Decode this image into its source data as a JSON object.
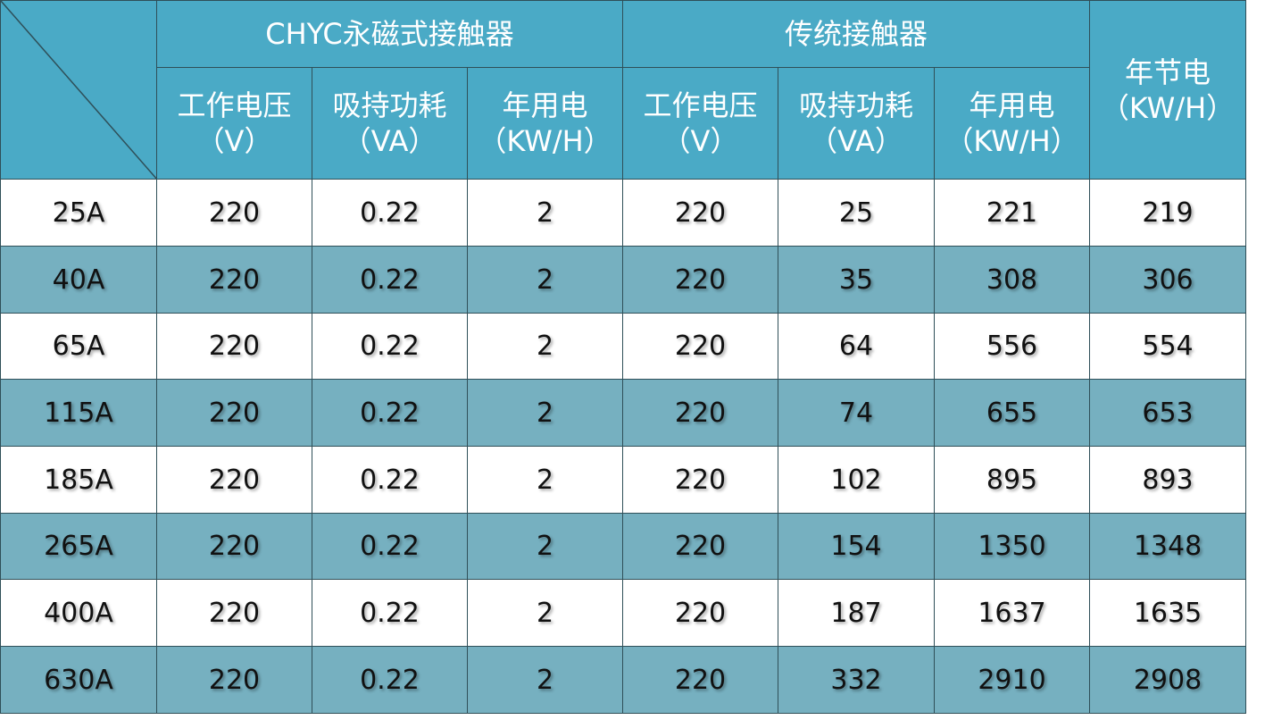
{
  "header": {
    "group1": "CHYC永磁式接触器",
    "group2": "传统接触器",
    "savings": {
      "name": "年节电",
      "unit": "（KW/H）"
    },
    "columns": [
      {
        "name": "工作电压",
        "unit": "（V）"
      },
      {
        "name": "吸持功耗",
        "unit": "（VA）"
      },
      {
        "name": "年用电",
        "unit": "（KW/H）"
      },
      {
        "name": "工作电压",
        "unit": "（V）"
      },
      {
        "name": "吸持功耗",
        "unit": "（VA）"
      },
      {
        "name": "年用电",
        "unit": "（KW/H）"
      }
    ]
  },
  "table": {
    "rows": [
      [
        "25A",
        220,
        0.22,
        2,
        220,
        25,
        221,
        219
      ],
      [
        "40A",
        220,
        0.22,
        2,
        220,
        35,
        308,
        306
      ],
      [
        "65A",
        220,
        0.22,
        2,
        220,
        64,
        556,
        554
      ],
      [
        "115A",
        220,
        0.22,
        2,
        220,
        74,
        655,
        653
      ],
      [
        "185A",
        220,
        0.22,
        2,
        220,
        102,
        895,
        893
      ],
      [
        "265A",
        220,
        0.22,
        2,
        220,
        154,
        1350,
        1348
      ],
      [
        "400A",
        220,
        0.22,
        2,
        220,
        187,
        1637,
        1635
      ],
      [
        "630A",
        220,
        0.22,
        2,
        220,
        332,
        2910,
        2908
      ]
    ]
  }
}
